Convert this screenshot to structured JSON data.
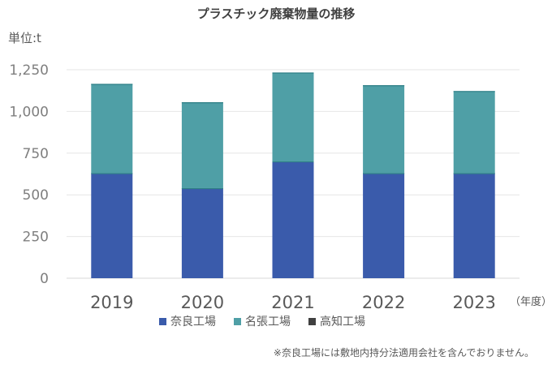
{
  "chart_data": {
    "type": "bar",
    "stacked": true,
    "title": "プラスチック廃棄物量の推移",
    "unit_label": "単位:t",
    "xlabel": "",
    "x_unit": "（年度）",
    "ylabel": "",
    "ylim": [
      0,
      1250
    ],
    "yticks": [
      0,
      250,
      500,
      750,
      1000,
      1250
    ],
    "ytick_labels": [
      "0",
      "250",
      "500",
      "750",
      "1,000",
      "1,250"
    ],
    "grid": true,
    "legend_position": "bottom",
    "categories": [
      "2019",
      "2020",
      "2021",
      "2022",
      "2023"
    ],
    "series": [
      {
        "name": "奈良工場",
        "color": "#3a5bab",
        "values": [
          630,
          540,
          700,
          630,
          630
        ]
      },
      {
        "name": "名張工場",
        "color": "#4f9fa6",
        "values": [
          535,
          515,
          533,
          527,
          492
        ]
      },
      {
        "name": "高知工場",
        "color": "#404040",
        "values": [
          0,
          0,
          0,
          0,
          0
        ]
      }
    ],
    "footnote": "※奈良工場には敷地内持分法適用会社を含んでおりません。"
  }
}
